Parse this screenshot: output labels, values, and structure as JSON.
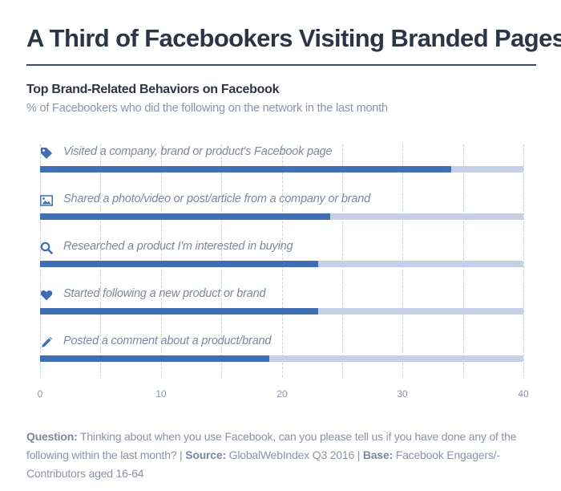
{
  "header": {
    "title": "A Third of Facebookers Visiting Branded Pages",
    "subtitle": "Top Brand-Related Behaviors on Facebook",
    "description": "% of Facebookers who did the following on the network in the last month"
  },
  "colors": {
    "bar_fill": "#3f6eb5",
    "bar_track": "#c5d0e6",
    "title": "#2b3547",
    "muted": "#8a93a8"
  },
  "chart_data": {
    "type": "bar",
    "orientation": "horizontal",
    "title": "Top Brand-Related Behaviors on Facebook",
    "subtitle": "% of Facebookers who did the following on the network in the last month",
    "categories": [
      "Visited a company, brand or product's Facebook page",
      "Shared a photo/video or post/article from a company or brand",
      "Researched a product I'm interested in buying",
      "Started following a new product or brand",
      "Posted a comment about a product/brand"
    ],
    "icons": [
      "tag-icon",
      "image-icon",
      "search-icon",
      "heart-icon",
      "pencil-icon"
    ],
    "values": [
      34,
      24,
      23,
      23,
      19
    ],
    "xlabel": "",
    "ylabel": "",
    "xlim": [
      0,
      40
    ],
    "xticks": [
      0,
      10,
      20,
      30,
      40
    ],
    "gridlines": [
      0,
      5,
      10,
      15,
      20,
      25,
      30,
      35,
      40
    ],
    "grid": true,
    "legend": "none"
  },
  "axis": {
    "ticks": [
      "0",
      "10",
      "20",
      "30",
      "40"
    ]
  },
  "footer": {
    "question_label": "Question:",
    "question_text": " Thinking about when you use Facebook, can you please tell us if you have done any of the following within the last month? | ",
    "source_label": "Source:",
    "source_text": " GlobalWebIndex Q3 2016 | ",
    "base_label": "Base:",
    "base_text": " Facebook Engagers/-Contributors aged 16-64"
  }
}
